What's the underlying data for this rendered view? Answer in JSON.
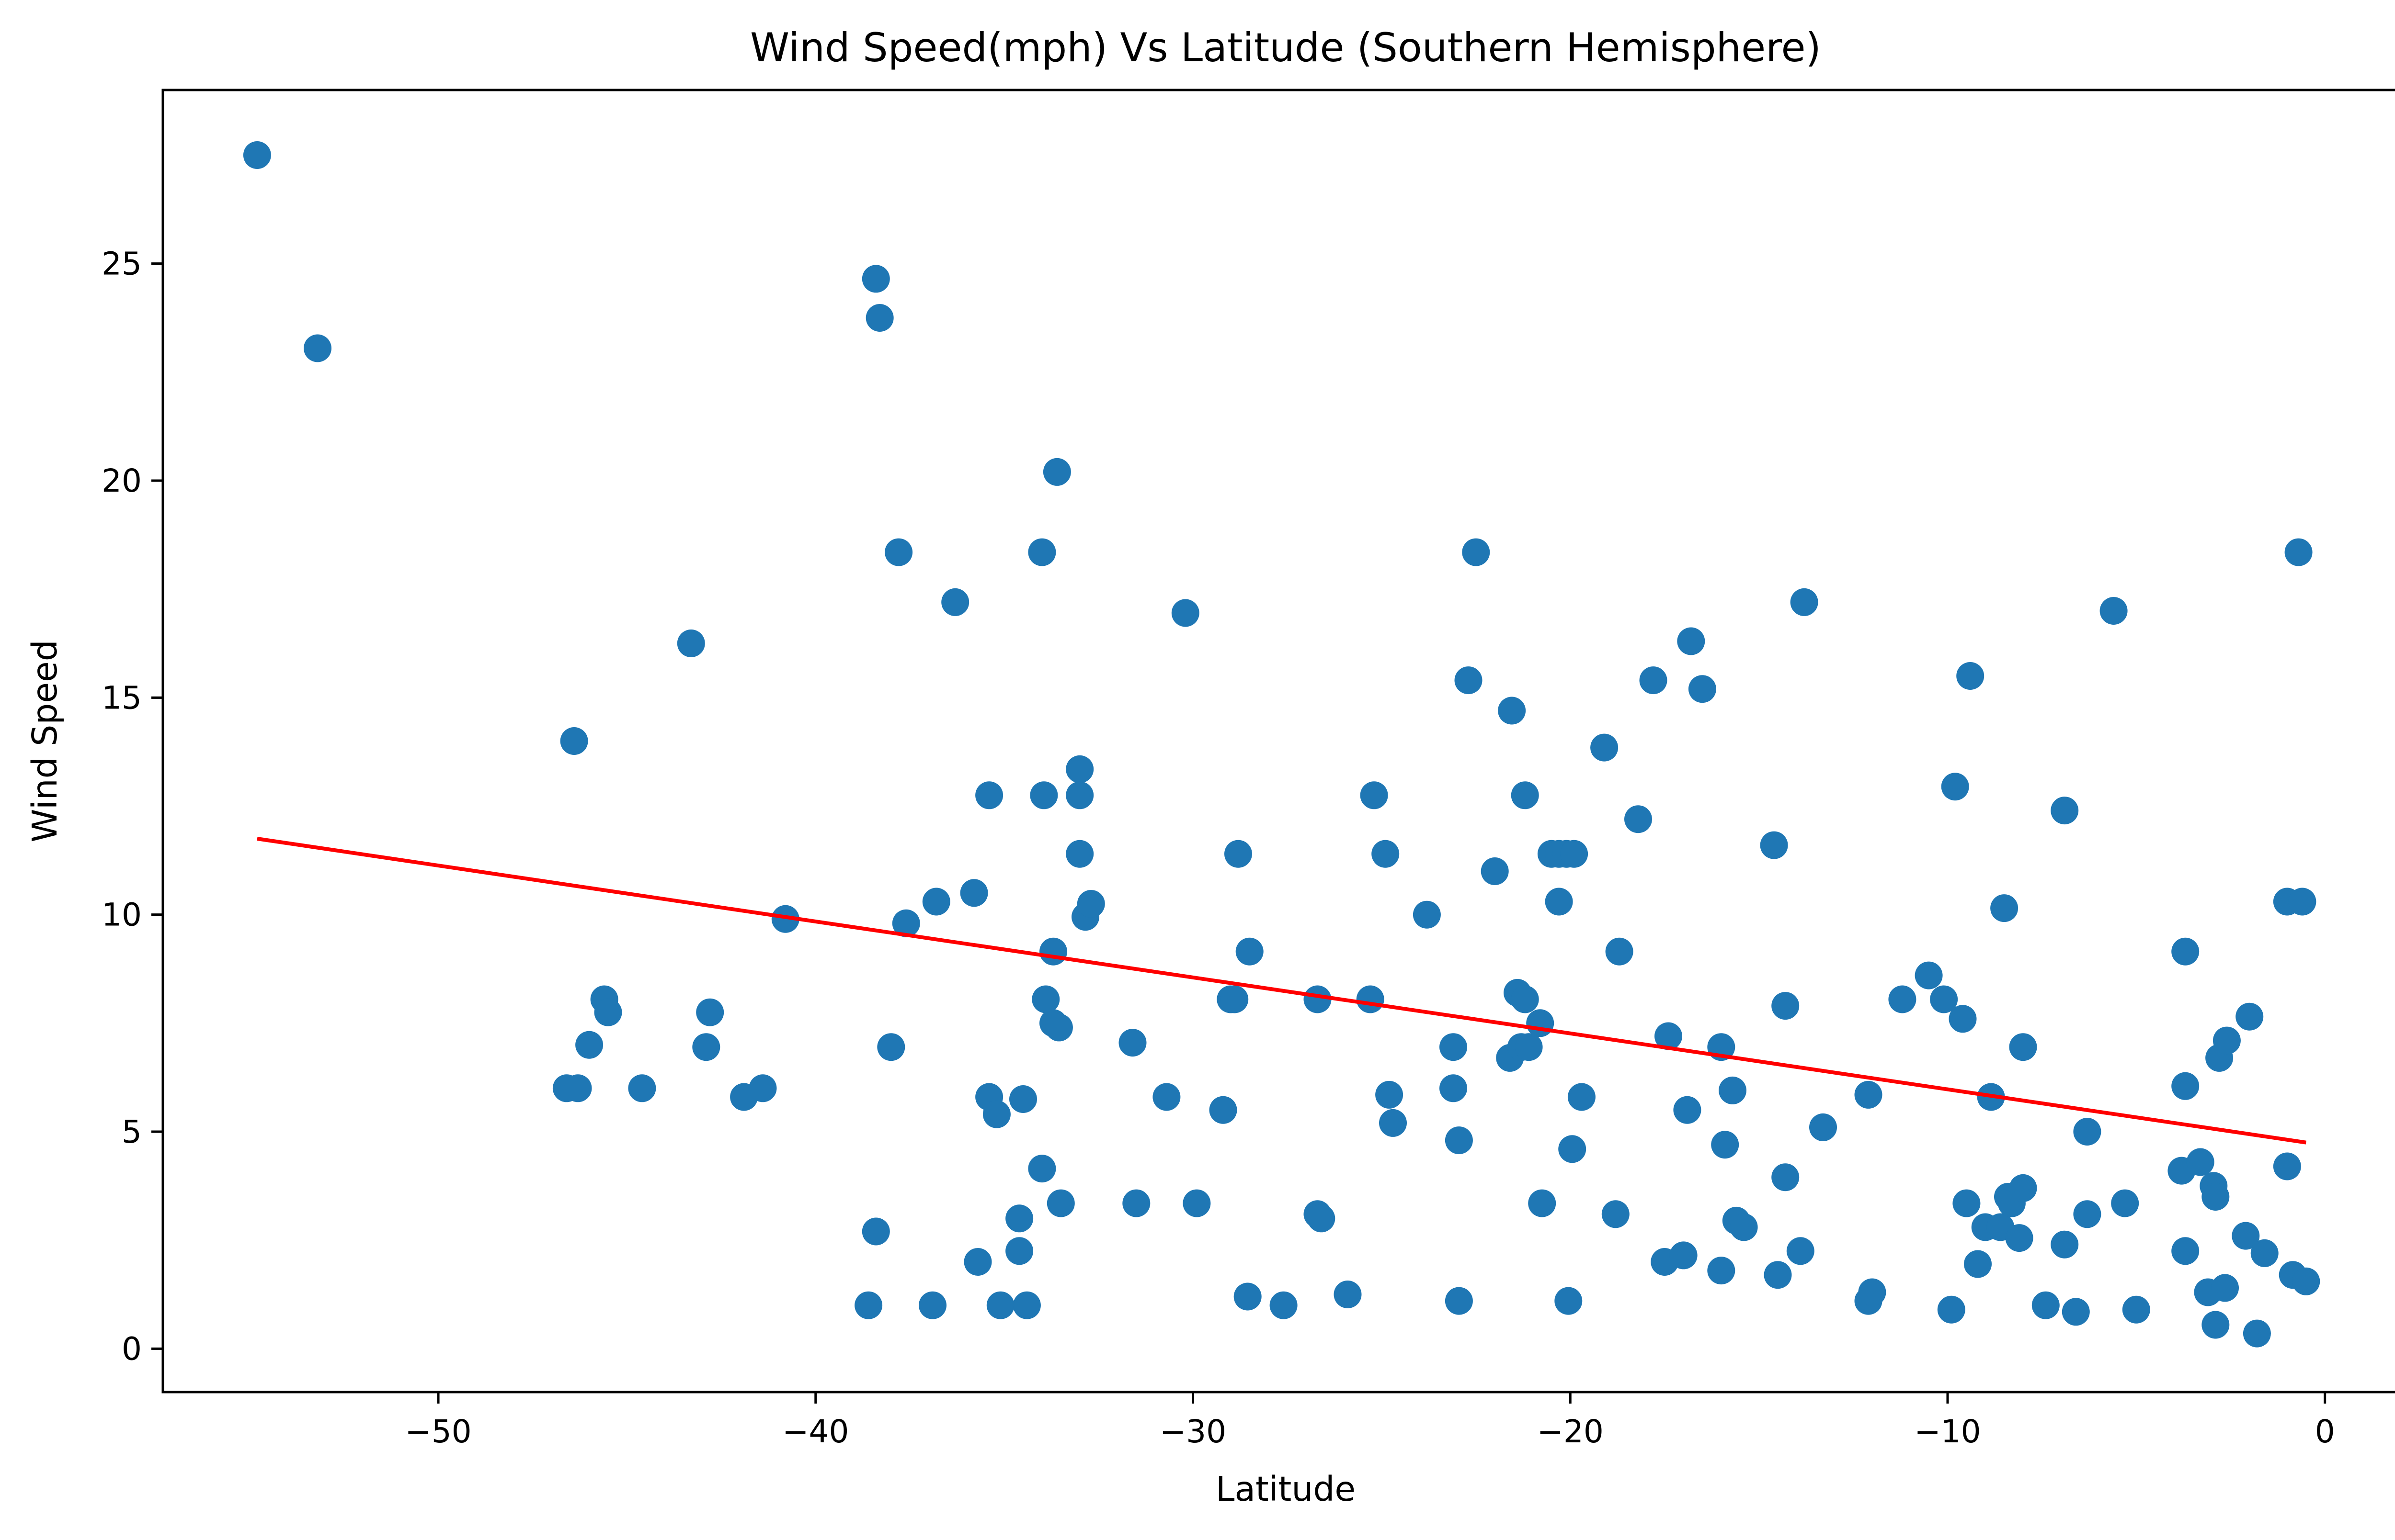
{
  "chart_data": {
    "type": "scatter",
    "title": "Wind Speed(mph) Vs Latitude (Southern Hemisphere)",
    "xlabel": "Latitude",
    "ylabel": "Wind Speed",
    "xlim": [
      -57.3,
      2.2
    ],
    "ylim": [
      -1.0,
      29.0
    ],
    "xticks": [
      -50,
      -40,
      -30,
      -20,
      -10,
      0
    ],
    "xtick_labels": [
      "−50",
      "−40",
      "−30",
      "−20",
      "−10",
      "0"
    ],
    "yticks": [
      0,
      5,
      10,
      15,
      20,
      25
    ],
    "ytick_labels": [
      "0",
      "5",
      "10",
      "15",
      "20",
      "25"
    ],
    "grid": false,
    "legend": "none",
    "colors": {
      "points": "#1f77b4",
      "regression": "#ff0000"
    },
    "regression_line": {
      "x": [
        -54.8,
        -0.5
      ],
      "y": [
        11.75,
        4.75
      ]
    },
    "points": [
      [
        -54.8,
        27.5
      ],
      [
        -53.2,
        23.05
      ],
      [
        -46.6,
        6.0
      ],
      [
        -46.3,
        6.0
      ],
      [
        -46.4,
        14.0
      ],
      [
        -46.0,
        7.0
      ],
      [
        -45.6,
        8.05
      ],
      [
        -45.5,
        7.75
      ],
      [
        -44.6,
        6.0
      ],
      [
        -43.3,
        16.25
      ],
      [
        -42.9,
        6.95
      ],
      [
        -42.8,
        7.75
      ],
      [
        -41.9,
        5.8
      ],
      [
        -41.4,
        6.0
      ],
      [
        -40.8,
        9.9
      ],
      [
        -38.6,
        1.0
      ],
      [
        -38.4,
        24.65
      ],
      [
        -38.4,
        2.7
      ],
      [
        -38.3,
        23.75
      ],
      [
        -38.0,
        6.95
      ],
      [
        -37.8,
        18.35
      ],
      [
        -37.6,
        9.8
      ],
      [
        -36.9,
        1.0
      ],
      [
        -36.8,
        10.3
      ],
      [
        -36.3,
        17.2
      ],
      [
        -35.8,
        10.5
      ],
      [
        -35.7,
        2.0
      ],
      [
        -35.4,
        12.75
      ],
      [
        -35.4,
        5.8
      ],
      [
        -35.2,
        5.4
      ],
      [
        -35.1,
        1.0
      ],
      [
        -34.6,
        3.0
      ],
      [
        -34.6,
        2.25
      ],
      [
        -34.5,
        5.75
      ],
      [
        -34.4,
        1.0
      ],
      [
        -34.0,
        18.35
      ],
      [
        -33.95,
        12.75
      ],
      [
        -33.9,
        8.05
      ],
      [
        -34.0,
        4.15
      ],
      [
        -33.7,
        9.15
      ],
      [
        -33.7,
        7.5
      ],
      [
        -33.6,
        20.2
      ],
      [
        -33.55,
        7.4
      ],
      [
        -33.5,
        3.35
      ],
      [
        -33.0,
        13.35
      ],
      [
        -33.0,
        12.75
      ],
      [
        -33.0,
        11.4
      ],
      [
        -32.85,
        9.95
      ],
      [
        -32.7,
        10.25
      ],
      [
        -31.6,
        7.05
      ],
      [
        -31.5,
        3.35
      ],
      [
        -30.7,
        5.8
      ],
      [
        -30.2,
        16.95
      ],
      [
        -29.9,
        3.35
      ],
      [
        -29.2,
        5.5
      ],
      [
        -29.0,
        8.05
      ],
      [
        -28.9,
        8.05
      ],
      [
        -28.8,
        11.4
      ],
      [
        -28.55,
        1.2
      ],
      [
        -28.5,
        9.15
      ],
      [
        -27.6,
        1.0
      ],
      [
        -26.7,
        8.05
      ],
      [
        -26.7,
        3.1
      ],
      [
        -26.6,
        3.0
      ],
      [
        -25.9,
        1.25
      ],
      [
        -25.3,
        8.05
      ],
      [
        -25.2,
        12.75
      ],
      [
        -24.9,
        11.4
      ],
      [
        -24.8,
        5.85
      ],
      [
        -24.7,
        5.2
      ],
      [
        -23.8,
        10.0
      ],
      [
        -23.1,
        6.95
      ],
      [
        -23.1,
        6.0
      ],
      [
        -22.95,
        4.8
      ],
      [
        -22.95,
        1.1
      ],
      [
        -22.7,
        15.4
      ],
      [
        -22.5,
        18.35
      ],
      [
        -22.0,
        11.0
      ],
      [
        -21.6,
        6.7
      ],
      [
        -21.55,
        14.7
      ],
      [
        -21.4,
        8.2
      ],
      [
        -21.3,
        6.95
      ],
      [
        -21.2,
        12.75
      ],
      [
        -21.2,
        8.05
      ],
      [
        -21.1,
        6.95
      ],
      [
        -20.8,
        7.5
      ],
      [
        -20.75,
        3.35
      ],
      [
        -20.5,
        11.4
      ],
      [
        -20.3,
        11.4
      ],
      [
        -20.3,
        10.3
      ],
      [
        -20.1,
        11.4
      ],
      [
        -20.05,
        1.1
      ],
      [
        -19.9,
        11.4
      ],
      [
        -19.95,
        4.6
      ],
      [
        -19.7,
        5.8
      ],
      [
        -19.1,
        13.85
      ],
      [
        -18.8,
        3.1
      ],
      [
        -18.7,
        9.15
      ],
      [
        -18.2,
        12.2
      ],
      [
        -17.8,
        15.4
      ],
      [
        -17.5,
        2.0
      ],
      [
        -17.4,
        7.2
      ],
      [
        -17.0,
        2.15
      ],
      [
        -16.9,
        5.5
      ],
      [
        -16.8,
        16.3
      ],
      [
        -16.5,
        15.2
      ],
      [
        -16.0,
        1.8
      ],
      [
        -16.0,
        6.95
      ],
      [
        -15.9,
        4.7
      ],
      [
        -15.7,
        5.95
      ],
      [
        -15.6,
        2.95
      ],
      [
        -15.4,
        2.8
      ],
      [
        -14.6,
        11.6
      ],
      [
        -14.5,
        1.7
      ],
      [
        -14.3,
        7.9
      ],
      [
        -14.3,
        3.95
      ],
      [
        -13.9,
        2.25
      ],
      [
        -13.8,
        17.2
      ],
      [
        -13.3,
        5.1
      ],
      [
        -12.1,
        5.85
      ],
      [
        -12.1,
        1.1
      ],
      [
        -12.0,
        1.3
      ],
      [
        -11.2,
        8.05
      ],
      [
        -10.5,
        8.6
      ],
      [
        -10.1,
        8.05
      ],
      [
        -9.9,
        0.9
      ],
      [
        -9.8,
        12.95
      ],
      [
        -9.6,
        7.6
      ],
      [
        -9.5,
        3.35
      ],
      [
        -9.4,
        15.5
      ],
      [
        -9.2,
        1.95
      ],
      [
        -9.0,
        2.8
      ],
      [
        -8.85,
        5.8
      ],
      [
        -8.6,
        2.8
      ],
      [
        -8.5,
        10.15
      ],
      [
        -8.4,
        3.5
      ],
      [
        -8.3,
        3.35
      ],
      [
        -8.1,
        2.55
      ],
      [
        -8.0,
        6.95
      ],
      [
        -8.0,
        3.7
      ],
      [
        -7.4,
        1.0
      ],
      [
        -6.9,
        2.4
      ],
      [
        -6.9,
        12.4
      ],
      [
        -6.6,
        0.85
      ],
      [
        -6.3,
        5.0
      ],
      [
        -6.3,
        3.1
      ],
      [
        -5.6,
        17.0
      ],
      [
        -5.3,
        3.35
      ],
      [
        -5.0,
        0.9
      ],
      [
        -3.8,
        4.1
      ],
      [
        -3.7,
        9.15
      ],
      [
        -3.7,
        2.25
      ],
      [
        -3.7,
        6.05
      ],
      [
        -3.3,
        4.3
      ],
      [
        -3.1,
        1.3
      ],
      [
        -2.95,
        3.75
      ],
      [
        -2.9,
        3.5
      ],
      [
        -2.9,
        0.55
      ],
      [
        -2.8,
        6.7
      ],
      [
        -2.65,
        1.4
      ],
      [
        -2.6,
        7.1
      ],
      [
        -2.1,
        2.6
      ],
      [
        -2.0,
        7.65
      ],
      [
        -1.8,
        0.35
      ],
      [
        -1.6,
        2.2
      ],
      [
        -1.0,
        4.2
      ],
      [
        -1.0,
        10.3
      ],
      [
        -0.85,
        1.7
      ],
      [
        -0.7,
        18.35
      ],
      [
        -0.6,
        10.3
      ],
      [
        -0.5,
        1.55
      ]
    ]
  }
}
